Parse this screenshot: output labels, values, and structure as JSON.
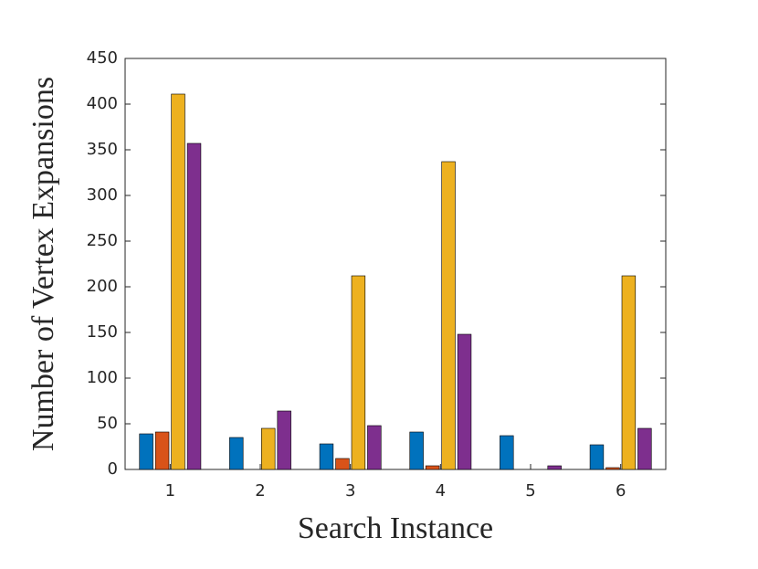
{
  "chart_data": {
    "type": "bar",
    "xlabel": "Search Instance",
    "ylabel": "Number of Vertex Expansions",
    "categories": [
      "1",
      "2",
      "3",
      "4",
      "5",
      "6"
    ],
    "series": [
      {
        "color": "#0072BD",
        "values": [
          39,
          35,
          28,
          41,
          37,
          27
        ]
      },
      {
        "color": "#D95319",
        "values": [
          41,
          0,
          12,
          4,
          0,
          2
        ]
      },
      {
        "color": "#EDB120",
        "values": [
          411,
          45,
          212,
          337,
          0,
          212
        ]
      },
      {
        "color": "#7E2F8E",
        "values": [
          357,
          64,
          48,
          148,
          4,
          45
        ]
      }
    ],
    "ylim": [
      0,
      450
    ],
    "yticks": [
      0,
      50,
      100,
      150,
      200,
      250,
      300,
      350,
      400,
      450
    ]
  }
}
